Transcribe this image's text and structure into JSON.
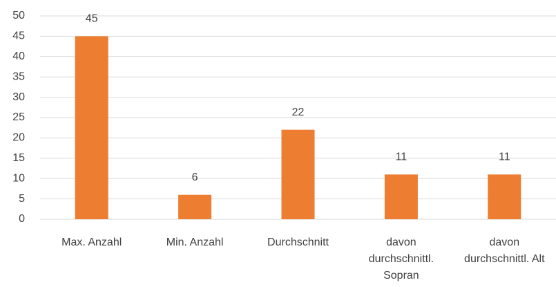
{
  "chart_data": {
    "type": "bar",
    "categories": [
      "Max. Anzahl",
      "Min. Anzahl",
      "Durchschnitt",
      "davon durchschnittl. Sopran",
      "davon durchschnittl. Alt"
    ],
    "values": [
      45,
      6,
      22,
      11,
      11
    ],
    "color": "#ed7d31",
    "ylim": [
      0,
      50
    ],
    "yticks": [
      0,
      5,
      10,
      15,
      20,
      25,
      30,
      35,
      40,
      45,
      50
    ],
    "grid": true
  }
}
